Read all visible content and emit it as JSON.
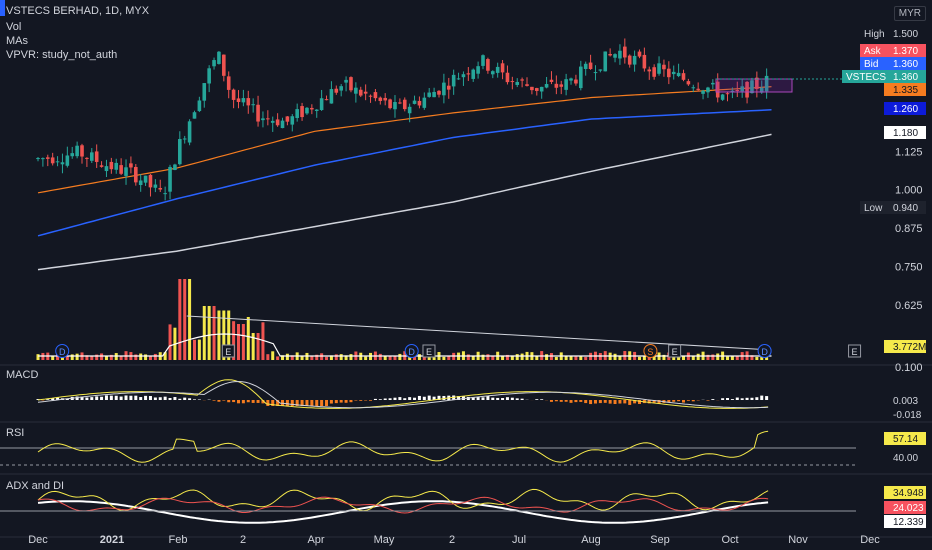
{
  "header": {
    "symbol_line": "VSTECS BERHAD, 1D, MYX",
    "indicator_vol": "Vol",
    "indicator_mas": "MAs",
    "indicator_vpvr": "VPVR: study_not_auth",
    "currency": "MYR"
  },
  "panes": {
    "macd_title": "MACD",
    "rsi_title": "RSI",
    "adx_title": "ADX and DI"
  },
  "price_badges": {
    "high_label": "High",
    "high_value": "1.500",
    "ask_label": "Ask",
    "ask_value": "1.370",
    "bid_label": "Bid",
    "bid_value": "1.360",
    "symbol_label": "VSTECS",
    "last_value": "1.360",
    "ma50_value": "1.335",
    "ma100_value": "1.260",
    "ma200_value": "1.180",
    "low_label": "Low",
    "low_value": "0.940",
    "vol_value": "3.772M"
  },
  "indicator_badges": {
    "macd_1": "0.003",
    "macd_2": "-0.018",
    "rsi_value": "57.14",
    "rsi_level": "40.00",
    "adx_1": "34.948",
    "adx_2": "24.023",
    "adx_3": "12.339"
  },
  "event_markers": [
    {
      "kind": "D",
      "month_pos": 0.35
    },
    {
      "kind": "E",
      "month_pos": 2.75
    },
    {
      "kind": "D",
      "month_pos": 5.4
    },
    {
      "kind": "E",
      "month_pos": 5.65
    },
    {
      "kind": "S",
      "month_pos": 8.85
    },
    {
      "kind": "E",
      "month_pos": 9.2
    },
    {
      "kind": "D",
      "month_pos": 10.5
    },
    {
      "kind": "E",
      "month_pos": 11.8
    }
  ],
  "colors": {
    "background": "#131722",
    "up": "#26a69a",
    "down": "#ef5350",
    "ma50": "#f7525f",
    "ma100": "#2962ff",
    "ma200": "#d1d4dc",
    "volume": "#f5e94b",
    "macd": "#f5e94b",
    "signal": "#d1d4dc",
    "hist_pos": "#ffffff",
    "hist_neg": "#f57c20"
  },
  "chart_data": {
    "type": "candlestick",
    "title": "VSTECS BERHAD, 1D, MYX",
    "y_axis_ticks": [
      "0.100",
      "0.625",
      "0.750",
      "0.875",
      "1.000",
      "1.125"
    ],
    "x_axis_ticks": [
      "Dec",
      "2021",
      "Feb",
      "2",
      "Apr",
      "May",
      "2",
      "Jul",
      "Aug",
      "Sep",
      "Oct",
      "Nov",
      "Dec"
    ],
    "ylim": [
      0.1,
      1.5
    ],
    "price_path": [
      [
        0,
        1.1
      ],
      [
        0.6,
        1.12
      ],
      [
        1.0,
        1.08
      ],
      [
        1.4,
        1.05
      ],
      [
        1.8,
        0.98
      ],
      [
        2.0,
        1.12
      ],
      [
        2.4,
        1.35
      ],
      [
        2.6,
        1.44
      ],
      [
        2.8,
        1.3
      ],
      [
        3.2,
        1.24
      ],
      [
        3.6,
        1.22
      ],
      [
        4.0,
        1.28
      ],
      [
        4.4,
        1.34
      ],
      [
        4.8,
        1.3
      ],
      [
        5.2,
        1.26
      ],
      [
        5.6,
        1.3
      ],
      [
        6.0,
        1.36
      ],
      [
        6.4,
        1.42
      ],
      [
        6.8,
        1.36
      ],
      [
        7.2,
        1.33
      ],
      [
        7.6,
        1.34
      ],
      [
        8.0,
        1.4
      ],
      [
        8.4,
        1.45
      ],
      [
        8.8,
        1.4
      ],
      [
        9.2,
        1.37
      ],
      [
        9.6,
        1.34
      ],
      [
        10.0,
        1.3
      ],
      [
        10.3,
        1.33
      ],
      [
        10.6,
        1.36
      ]
    ],
    "ma50_path": [
      [
        0,
        0.99
      ],
      [
        2,
        1.07
      ],
      [
        4,
        1.19
      ],
      [
        6,
        1.25
      ],
      [
        8,
        1.3
      ],
      [
        10.6,
        1.335
      ]
    ],
    "ma100_path": [
      [
        0,
        0.85
      ],
      [
        2,
        0.97
      ],
      [
        4,
        1.08
      ],
      [
        6,
        1.17
      ],
      [
        8,
        1.23
      ],
      [
        10.6,
        1.26
      ]
    ],
    "ma200_path": [
      [
        0,
        0.74
      ],
      [
        2,
        0.8
      ],
      [
        4,
        0.88
      ],
      [
        6,
        0.96
      ],
      [
        8,
        1.06
      ],
      [
        10.6,
        1.18
      ]
    ],
    "volume_peaks": [
      [
        2.1,
        0.9
      ],
      [
        2.5,
        0.6
      ],
      [
        2.7,
        0.55
      ],
      [
        2.9,
        0.4
      ],
      [
        3.1,
        0.3
      ]
    ],
    "vol_trendline": [
      [
        2.15,
        0.65
      ],
      [
        10.6,
        0.12
      ]
    ]
  }
}
